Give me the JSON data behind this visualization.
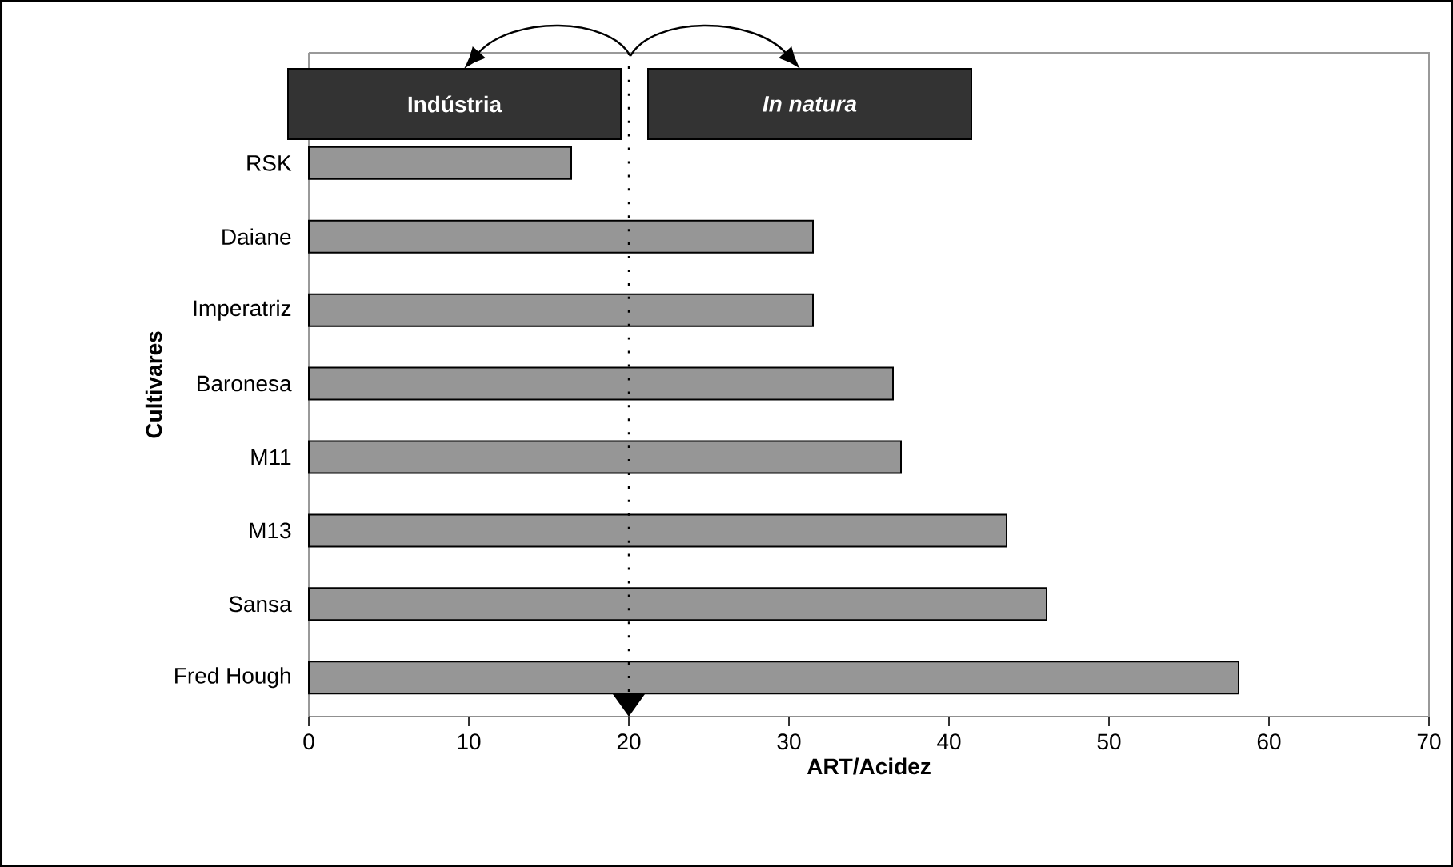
{
  "chart_data": {
    "type": "bar",
    "orientation": "horizontal",
    "categories": [
      "RSK",
      "Daiane",
      "Imperatriz",
      "Baronesa",
      "M11",
      "M13",
      "Sansa",
      "Fred Hough"
    ],
    "values": [
      16.4,
      31.5,
      31.5,
      36.5,
      37.0,
      43.6,
      46.1,
      58.1
    ],
    "color": "#969696",
    "xlim": [
      0,
      70
    ],
    "xticks": [
      0,
      10,
      20,
      30,
      40,
      50,
      60,
      70
    ],
    "xlabel": "ART/Acidez",
    "ylabel": "Cultivares",
    "ref_lines": [
      {
        "axis": "x",
        "value": 20,
        "line_style": "dotted"
      }
    ],
    "annotations": [
      "Indústria",
      "*In natura*"
    ]
  }
}
